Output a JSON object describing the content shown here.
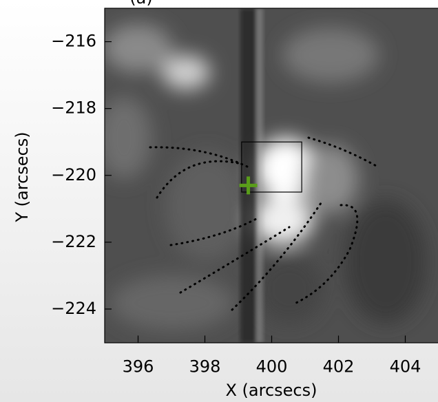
{
  "chart_data": {
    "type": "image",
    "title": "(a)",
    "x_label": "X (arcsecs)",
    "y_label": "Y (arcsecs)",
    "xlim": [
      395,
      405
    ],
    "ylim": [
      -225,
      -215
    ],
    "xticks": [
      396,
      398,
      400,
      402,
      404
    ],
    "yticks": [
      {
        "value": -216,
        "label": "−216"
      },
      {
        "value": -218,
        "label": "−218"
      },
      {
        "value": -220,
        "label": "−220"
      },
      {
        "value": -222,
        "label": "−222"
      },
      {
        "value": -224,
        "label": "−224"
      }
    ],
    "box": {
      "x": [
        399.1,
        400.9
      ],
      "y": [
        -220.5,
        -219
      ],
      "color": "#000000"
    },
    "marker": {
      "x": 399.3,
      "y": -220.3,
      "color": "#5a9e1a"
    }
  }
}
